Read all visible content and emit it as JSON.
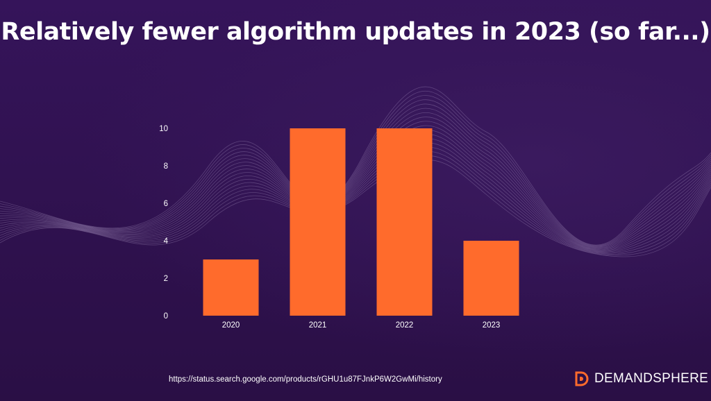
{
  "title": "Relatively fewer algorithm updates in 2023 (so far...)",
  "chart_data": {
    "type": "bar",
    "categories": [
      "2020",
      "2021",
      "2022",
      "2023"
    ],
    "values": [
      3,
      10,
      10,
      4
    ],
    "yticks": [
      0,
      2,
      4,
      6,
      8,
      10
    ],
    "ylim": [
      0,
      10
    ],
    "xlabel": "",
    "ylabel": "",
    "grid": false,
    "bar_color": "#ff6b2c"
  },
  "source": "https://status.search.google.com/products/rGHU1u87FJnkP6W2GwMi/history",
  "brand": {
    "name": "DEMANDSPHERE",
    "logo_icon": "demandsphere-logo-icon"
  },
  "colors": {
    "background": "#2d1048",
    "bar": "#ff6b2c",
    "text": "#ffffff"
  }
}
